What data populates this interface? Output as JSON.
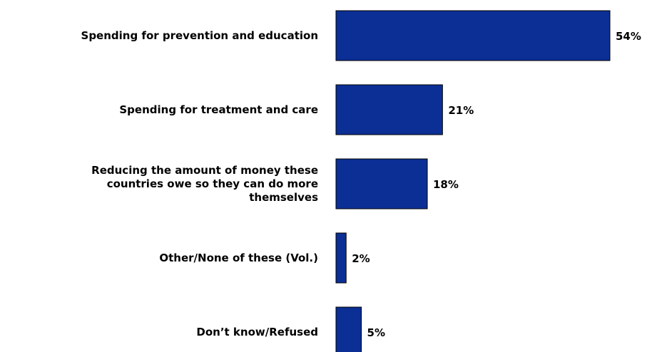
{
  "chart_data": {
    "type": "bar",
    "orientation": "horizontal",
    "categories": [
      "Spending for prevention and education",
      "Spending for treatment and care",
      "Reducing the amount of money these countries owe so they can do more themselves",
      "Other/None of these (Vol.)",
      "Don’t know/Refused"
    ],
    "category_lines": [
      [
        "Spending for prevention and education"
      ],
      [
        "Spending for treatment and care"
      ],
      [
        "Reducing the amount of money these",
        "countries owe so they can do more",
        "themselves"
      ],
      [
        "Other/None of these (Vol.)"
      ],
      [
        "Don’t know/Refused"
      ]
    ],
    "values": [
      54,
      21,
      18,
      2,
      5
    ],
    "value_labels": [
      "54%",
      "21%",
      "18%",
      "2%",
      "5%"
    ],
    "unit": "%",
    "xlim": [
      0,
      54
    ],
    "bar_color": "#0b2f95",
    "bar_border_color": "#000000",
    "grid": false,
    "legend": "none"
  }
}
